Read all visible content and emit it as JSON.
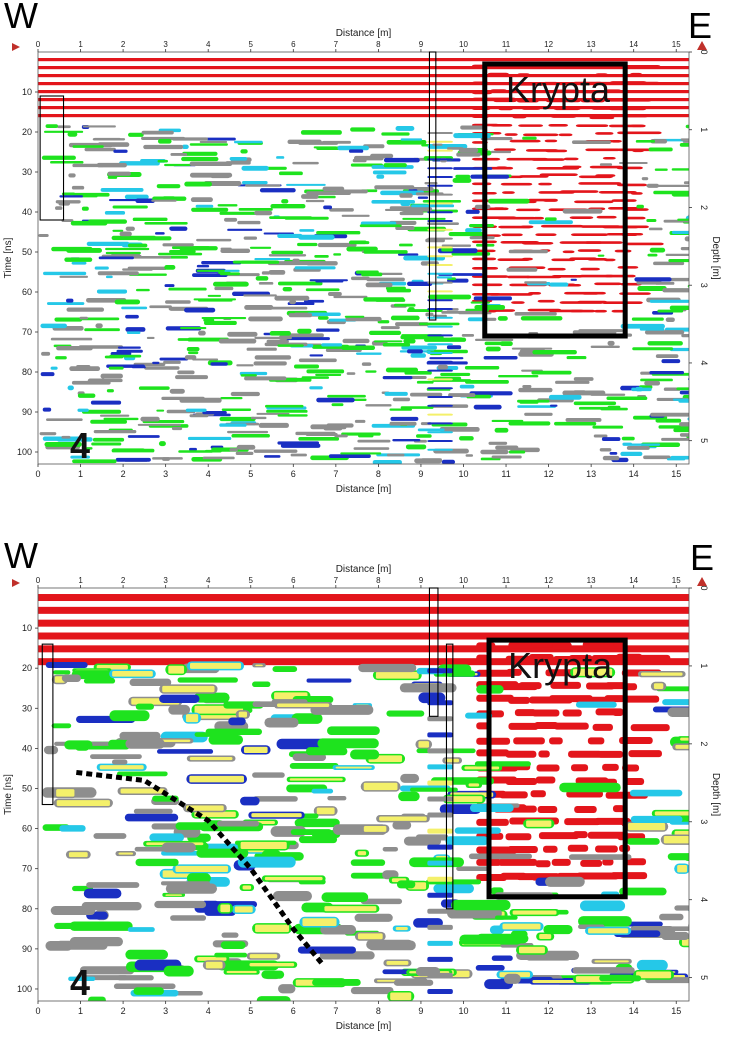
{
  "chart_data": [
    {
      "type": "radargram",
      "panel": "top",
      "xlabel": "Distance [m]",
      "ylabel_left": "Time [ns]",
      "ylabel_right": "Depth [m]",
      "xlim": [
        0,
        15.3
      ],
      "ylim_time": [
        0,
        103
      ],
      "ylim_depth": [
        0,
        5.3
      ],
      "x_ticks": [
        0,
        1,
        2,
        3,
        4,
        5,
        6,
        7,
        8,
        9,
        10,
        11,
        12,
        13,
        14,
        15
      ],
      "time_ticks": [
        10,
        20,
        30,
        40,
        50,
        60,
        70,
        80,
        90,
        100
      ],
      "depth_ticks": [
        0,
        1,
        2,
        3,
        4,
        5
      ],
      "corner_left": "W",
      "corner_right": "E",
      "panel_number": "4",
      "annotations": [
        {
          "label": "Krypta",
          "x": [
            10.5,
            13.8
          ],
          "time": [
            3,
            71
          ]
        }
      ],
      "outlines": [
        {
          "x": [
            0.05,
            0.6
          ],
          "time": [
            11,
            42
          ]
        },
        {
          "x": [
            9.2,
            9.35
          ],
          "time": [
            0,
            67
          ]
        }
      ]
    },
    {
      "type": "radargram",
      "panel": "bottom",
      "xlabel": "Distance [m]",
      "ylabel_left": "Time [ns]",
      "ylabel_right": "Depth [m]",
      "xlim": [
        0,
        15.3
      ],
      "ylim_time": [
        0,
        103
      ],
      "ylim_depth": [
        0,
        5.3
      ],
      "x_ticks": [
        0,
        1,
        2,
        3,
        4,
        5,
        6,
        7,
        8,
        9,
        10,
        11,
        12,
        13,
        14,
        15
      ],
      "time_ticks": [
        10,
        20,
        30,
        40,
        50,
        60,
        70,
        80,
        90,
        100
      ],
      "depth_ticks": [
        0,
        1,
        2,
        3,
        4,
        5
      ],
      "corner_left": "W",
      "corner_right": "E",
      "panel_number": "4",
      "annotations": [
        {
          "label": "Krypta",
          "x": [
            10.6,
            13.8
          ],
          "time": [
            13,
            77
          ]
        }
      ],
      "outlines": [
        {
          "x": [
            0.1,
            0.35
          ],
          "time": [
            14,
            54
          ]
        },
        {
          "x": [
            9.2,
            9.4
          ],
          "time": [
            0,
            32
          ]
        },
        {
          "x": [
            9.6,
            9.75
          ],
          "time": [
            14,
            80
          ]
        }
      ],
      "interpreted_reflector": [
        [
          0.9,
          46
        ],
        [
          2.5,
          48
        ],
        [
          4,
          58
        ],
        [
          5,
          70
        ],
        [
          6,
          85
        ],
        [
          6.7,
          94
        ]
      ]
    }
  ],
  "colors": {
    "red": "#e3151b",
    "green": "#1ee31e",
    "gray": "#8e8e8e",
    "blue": "#1a2fc2",
    "cyan": "#25c8e8",
    "yellow": "#f4f06a"
  }
}
